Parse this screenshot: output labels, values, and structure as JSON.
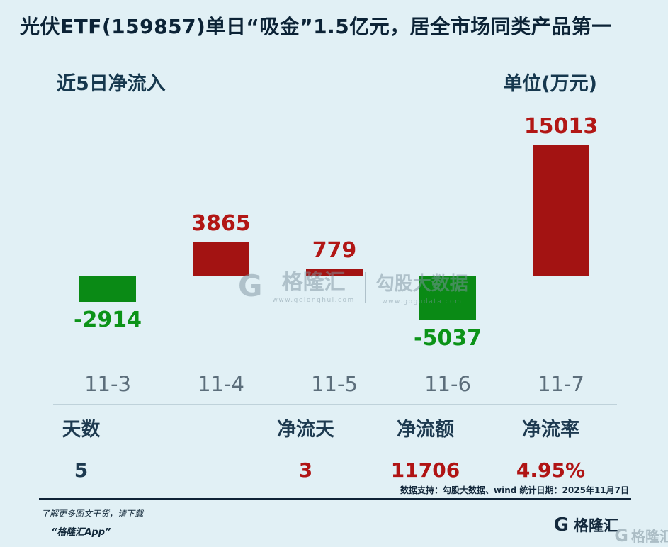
{
  "title": "光伏ETF(159857)单日“吸金”1.5亿元，居全市场同类产品第一",
  "chart_header": {
    "left": "近5日净流入",
    "right": "单位(万元)"
  },
  "chart_data": {
    "type": "bar",
    "title": "近5日净流入",
    "unit_label": "单位(万元)",
    "categories": [
      "11-3",
      "11-4",
      "11-5",
      "11-6",
      "11-7"
    ],
    "values": [
      -2914,
      3865,
      779,
      -5037,
      15013
    ],
    "xlabel": "",
    "ylabel": "净流入(万元)",
    "ylim": [
      -6000,
      16000
    ],
    "grid": false,
    "legend": "none",
    "colors": {
      "positive": "#a31312",
      "negative": "#0a8a15",
      "positive_label": "#b21715",
      "negative_label": "#0c9318"
    }
  },
  "stats": {
    "items": [
      {
        "label": "天数",
        "value": "5",
        "value_color": "#1d3a50"
      },
      {
        "label": "净流天",
        "value": "3",
        "value_color": "#b01414"
      },
      {
        "label": "净流额",
        "value": "11706",
        "value_color": "#b01414"
      },
      {
        "label": "净流率",
        "value": "4.95%",
        "value_color": "#b01414"
      }
    ]
  },
  "source_note": "数据支持：勾股大数据、wind  统计日期：2025年11月7日",
  "watermark": {
    "logo_letter": "G",
    "brand": "格隆汇",
    "brand_url": "www.gelonghui.com",
    "partner": "勾股大数据",
    "partner_url": "www.gogudata.com"
  },
  "footer": {
    "hint_line1": "了解更多图文干货，请下载",
    "hint_line2": "“格隆汇App”",
    "logo_letter": "G",
    "brand": "格隆汇"
  },
  "corner_watermark": {
    "logo_letter": "G",
    "brand": "格隆汇"
  }
}
